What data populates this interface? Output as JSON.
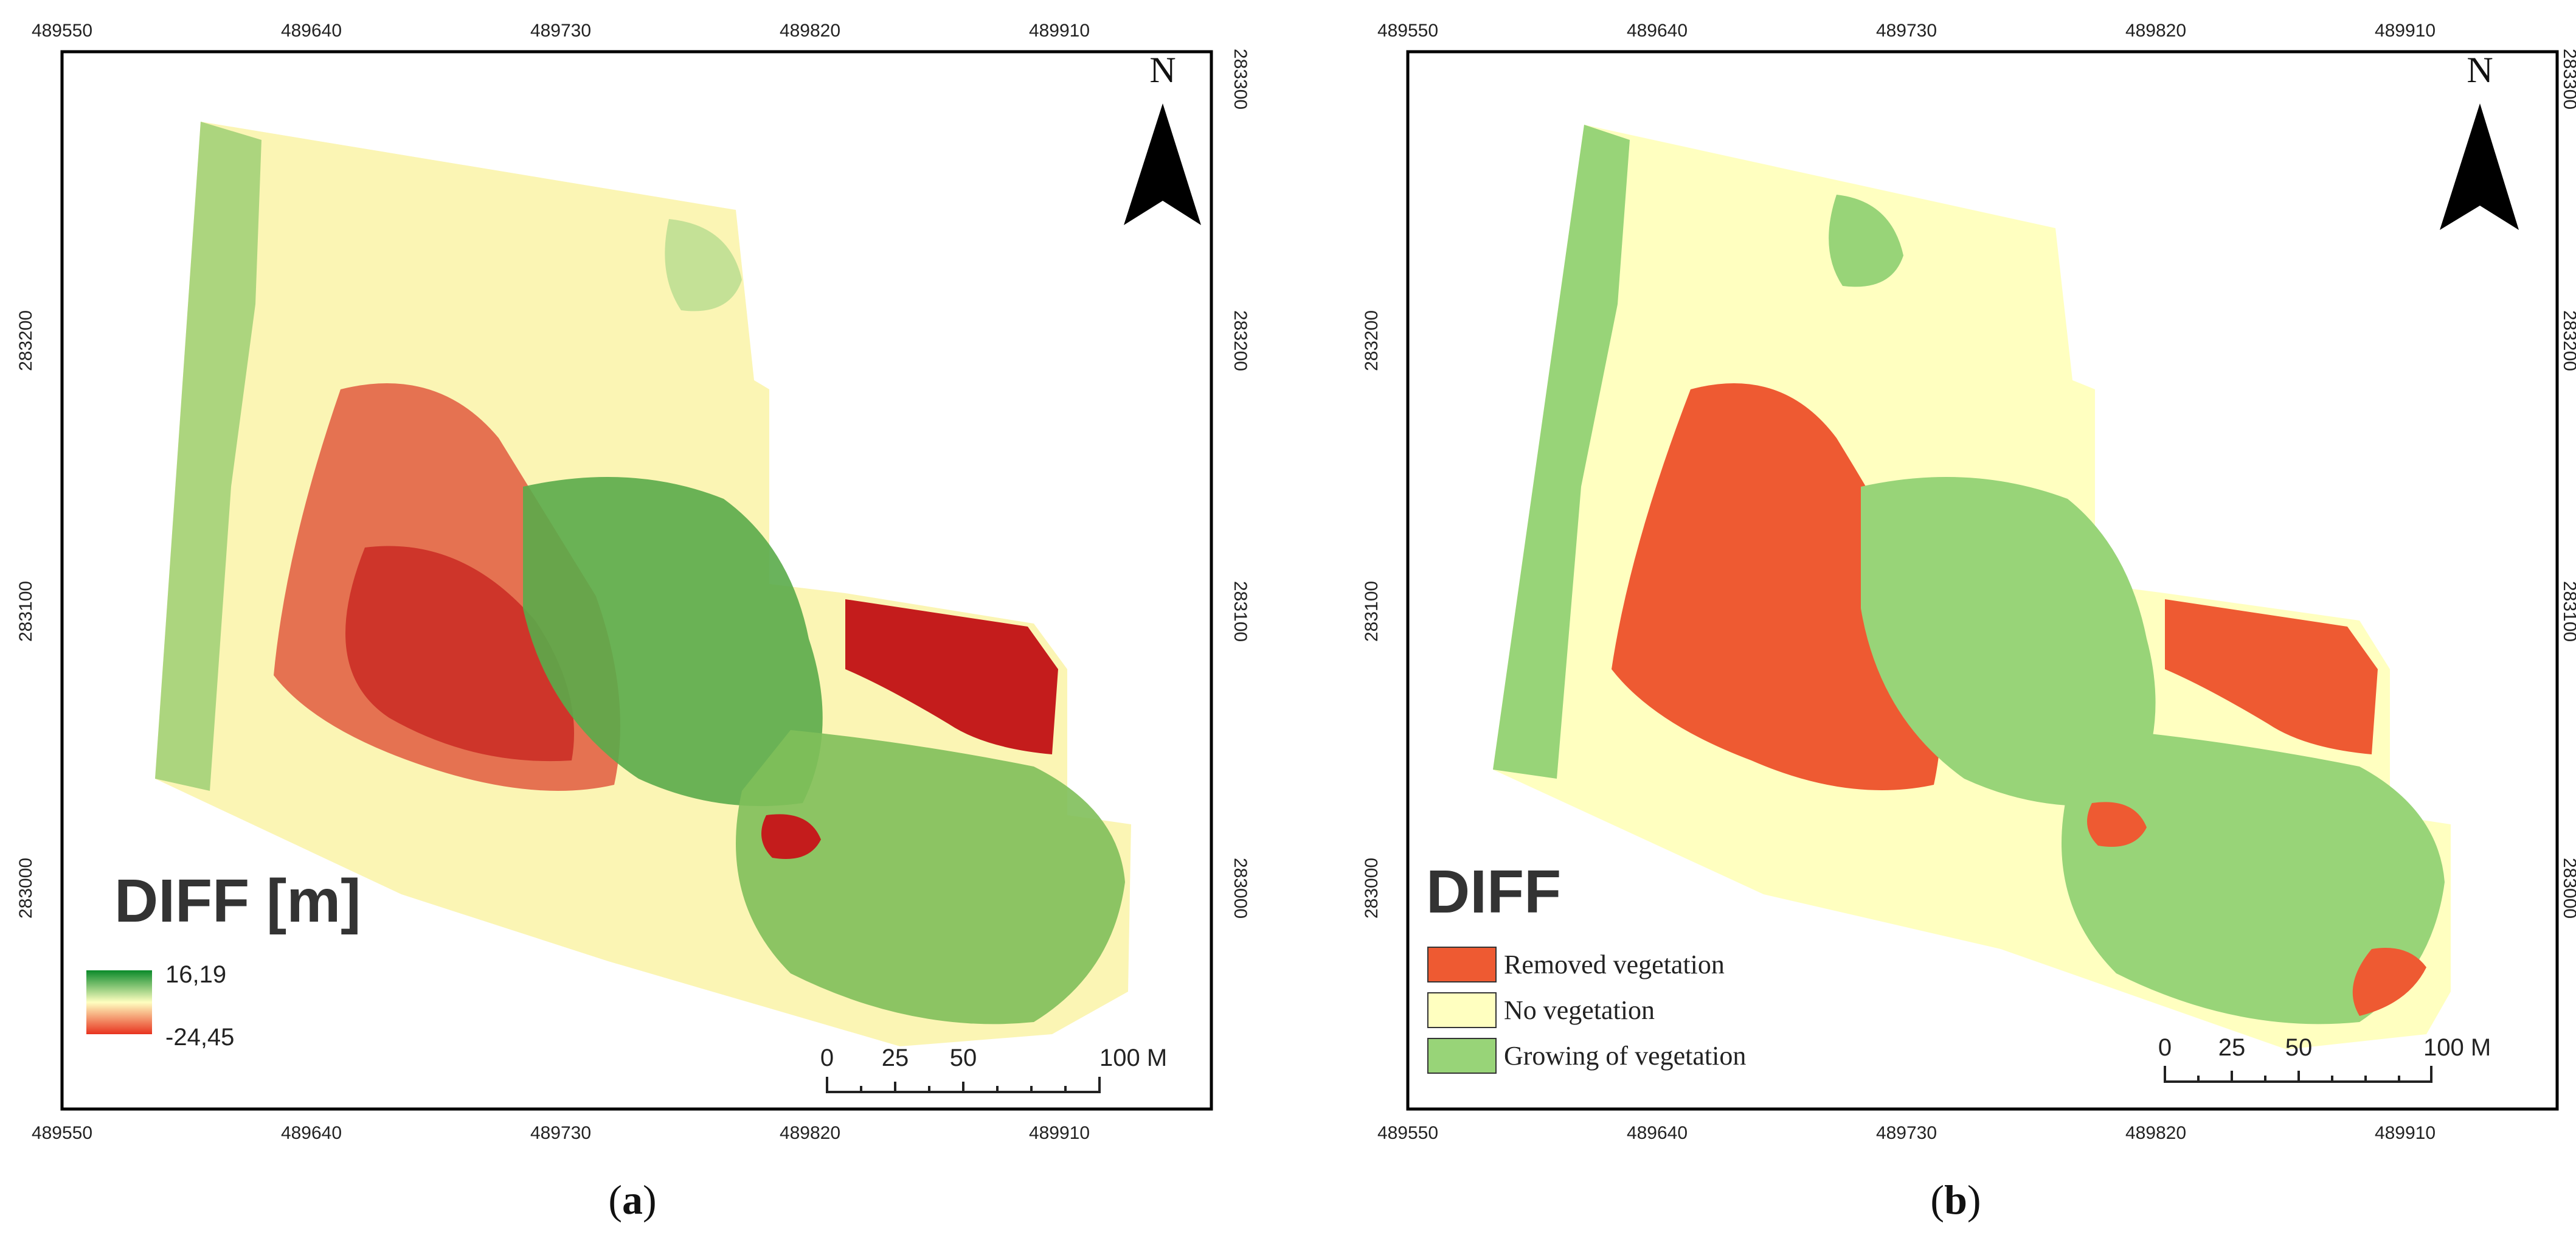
{
  "panels": [
    {
      "id": "a",
      "caption_letter": "a",
      "north_label": "N",
      "top_ticks": [
        "489550",
        "489640",
        "489730",
        "489820",
        "489910"
      ],
      "bottom_ticks": [
        "489550",
        "489640",
        "489730",
        "489820",
        "489910"
      ],
      "left_ticks": [
        "283200",
        "283100",
        "283000"
      ],
      "right_ticks": [
        "283300",
        "283200",
        "283100",
        "283000"
      ],
      "legend": {
        "title": "DIFF [m]",
        "max_label": "16,19",
        "min_label": "-24,45",
        "ramp_colors": [
          "#0a8a2a",
          "#ffffc0",
          "#e8321e"
        ]
      },
      "scale_bar": {
        "labels": [
          "0",
          "25",
          "50",
          "100 M"
        ],
        "unit": "M"
      }
    },
    {
      "id": "b",
      "caption_letter": "b",
      "north_label": "N",
      "top_ticks": [
        "489550",
        "489640",
        "489730",
        "489820",
        "489910"
      ],
      "bottom_ticks": [
        "489550",
        "489640",
        "489730",
        "489820",
        "489910"
      ],
      "left_ticks": [
        "283200",
        "283100",
        "283000"
      ],
      "right_ticks": [
        "283300",
        "283200",
        "283100",
        "283000"
      ],
      "legend": {
        "title": "DIFF",
        "classes": [
          {
            "label": "Removed vegetation",
            "color": "#ee5a32"
          },
          {
            "label": "No vegetation",
            "color": "#ffffc0"
          },
          {
            "label": "Growing of vegetation",
            "color": "#98d478"
          }
        ]
      },
      "scale_bar": {
        "labels": [
          "0",
          "25",
          "50",
          "100 M"
        ],
        "unit": "M"
      }
    }
  ]
}
